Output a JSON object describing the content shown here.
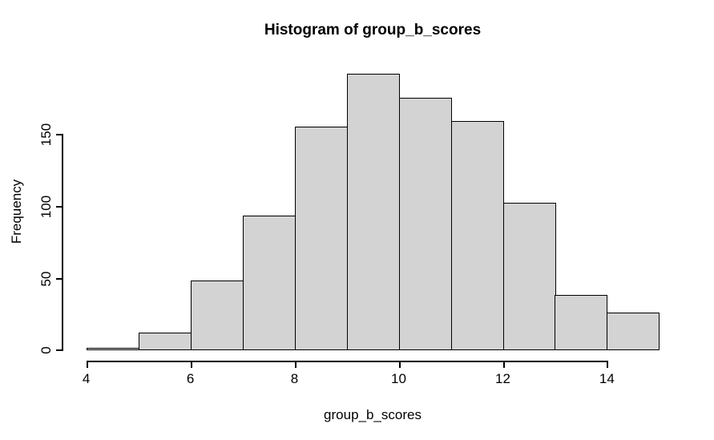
{
  "figure": {
    "title": "Histogram of group_b_scores",
    "xlabel": "group_b_scores",
    "ylabel": "Frequency"
  },
  "chart_data": {
    "type": "bar",
    "subtype": "histogram",
    "title": "Histogram of group_b_scores",
    "xlabel": "group_b_scores",
    "ylabel": "Frequency",
    "bin_breaks": [
      4,
      5,
      6,
      7,
      8,
      9,
      10,
      11,
      12,
      13,
      14,
      15
    ],
    "counts": [
      1,
      12,
      48,
      93,
      155,
      192,
      175,
      159,
      102,
      38,
      26
    ],
    "x_ticks": [
      "4",
      "6",
      "8",
      "10",
      "12",
      "14"
    ],
    "x_tick_values": [
      4,
      6,
      8,
      10,
      12,
      14
    ],
    "y_ticks": [
      "0",
      "50",
      "100",
      "150"
    ],
    "y_tick_values": [
      0,
      50,
      100,
      150
    ],
    "xlim": [
      3.56,
      15.44
    ],
    "ylim": [
      -7.68,
      199.68
    ],
    "grid": false,
    "legend": false,
    "bar_fill_color": "#d3d3d3",
    "bar_border_color": "#000000",
    "background_color": "#ffffff",
    "text_color": "#000000"
  }
}
